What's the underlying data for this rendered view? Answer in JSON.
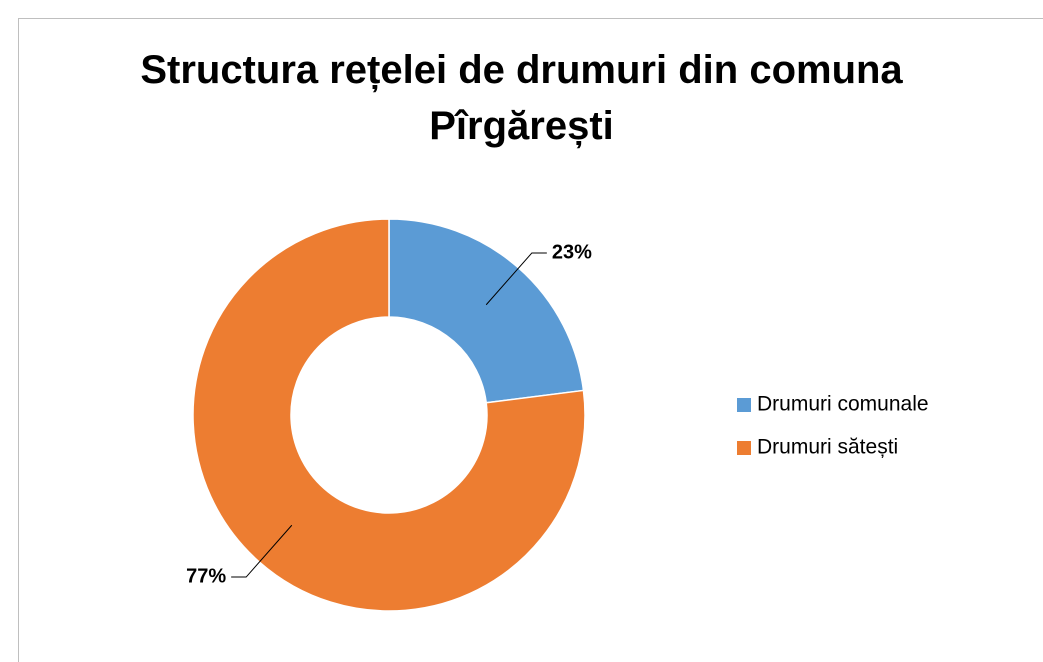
{
  "chart_data": {
    "type": "donut",
    "title": "Structura rețelei de drumuri din comuna Pîrgărești",
    "categories": [
      "Drumuri comunale",
      "Drumuri sătești"
    ],
    "values": [
      23,
      77
    ],
    "value_labels": [
      "23%",
      "77%"
    ],
    "colors": [
      "#5b9bd5",
      "#ed7d31"
    ],
    "legend": "right"
  }
}
